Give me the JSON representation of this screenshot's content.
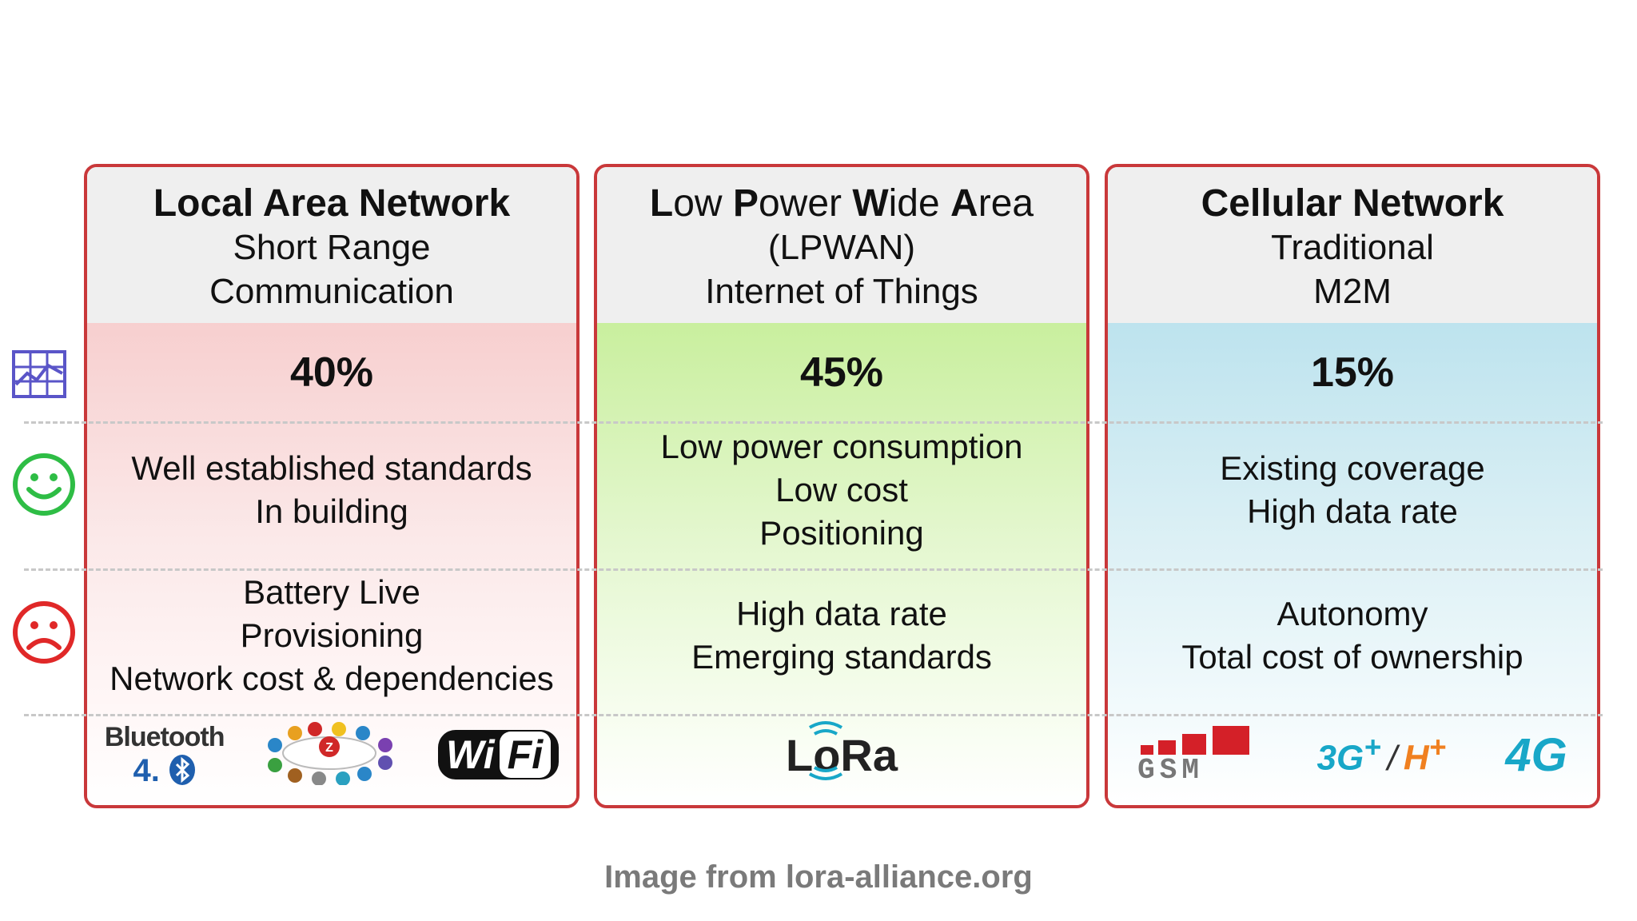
{
  "columns": [
    {
      "title": "Local Area Network",
      "subtitle_lines": [
        "Short Range",
        "Communication"
      ],
      "share": "40%",
      "pros": [
        "Well established standards",
        "In building"
      ],
      "cons": [
        "Battery Live",
        "Provisioning",
        "Network cost & dependencies"
      ],
      "logos": {
        "bluetooth_word": "Bluetooth",
        "bluetooth_version": "4.",
        "wifi_left": "Wi",
        "wifi_right": "Fi"
      }
    },
    {
      "title_parts": [
        {
          "bold": "L",
          "rest": "ow "
        },
        {
          "bold": "P",
          "rest": "ower "
        },
        {
          "bold": "W",
          "rest": "ide "
        },
        {
          "bold": "A",
          "rest": "rea"
        }
      ],
      "subtitle_lines": [
        "(LPWAN)",
        "Internet of Things"
      ],
      "share": "45%",
      "pros": [
        "Low power consumption",
        "Low cost",
        "Positioning"
      ],
      "cons": [
        "High data rate",
        "Emerging standards"
      ],
      "logos": {
        "lora": "LoRa"
      }
    },
    {
      "title": "Cellular Network",
      "subtitle_lines": [
        "Traditional",
        "M2M"
      ],
      "share": "15%",
      "pros": [
        "Existing coverage",
        "High data rate"
      ],
      "cons": [
        "Autonomy",
        "Total cost of ownership"
      ],
      "logos": {
        "gsm": "GSM",
        "g3": "3G",
        "g3_sup": "+",
        "slash": "/",
        "hplus": "H",
        "hplus_sup": "+",
        "g4": "4G"
      }
    }
  ],
  "side_icons": [
    "chart-icon",
    "happy-face-icon",
    "sad-face-icon"
  ],
  "credit": "Image from lora-alliance.org",
  "colors": {
    "border": "#c9383a",
    "lan_tint": "#f7cfcf",
    "lpwan_tint": "#c9ef9e",
    "cell_tint": "#bde3ee",
    "happy": "#2ebd45",
    "sad": "#e02828",
    "chart": "#5a55c8"
  }
}
